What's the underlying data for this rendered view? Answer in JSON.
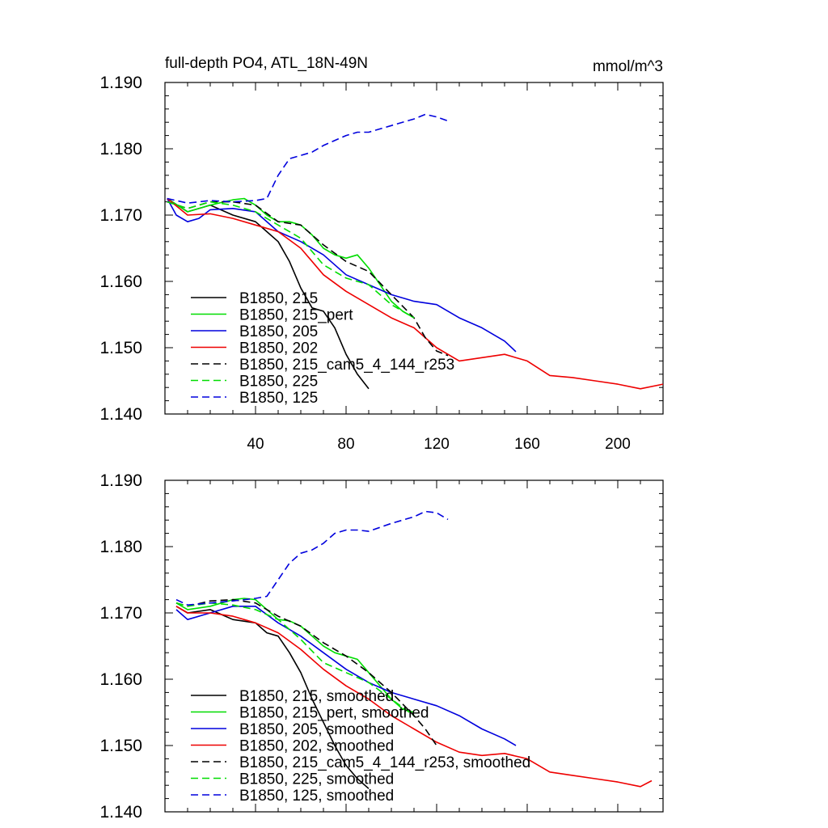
{
  "chart_data": [
    {
      "type": "line",
      "title": "full-depth PO4, ATL_18N-49N",
      "units": "mmol/m^3",
      "xlim": [
        0,
        220
      ],
      "ylim": [
        1.14,
        1.19
      ],
      "x_ticks": [
        "40",
        "80",
        "120",
        "160",
        "200"
      ],
      "y_ticks": [
        "1.190",
        "1.180",
        "1.170",
        "1.160",
        "1.150",
        "1.140"
      ],
      "legend_position": "bottom-left",
      "series": [
        {
          "name": "B1850, 215",
          "color": "#000000",
          "dashed": false,
          "x": [
            1,
            10,
            20,
            30,
            40,
            45,
            50,
            55,
            60,
            65,
            70,
            75,
            80,
            85,
            90
          ],
          "y": [
            1.1725,
            1.1705,
            1.1715,
            1.17,
            1.169,
            1.1675,
            1.166,
            1.163,
            1.159,
            1.156,
            1.1555,
            1.153,
            1.149,
            1.146,
            1.1438
          ]
        },
        {
          "name": "B1850, 215_pert",
          "color": "#00dd00",
          "dashed": false,
          "x": [
            1,
            10,
            20,
            30,
            35,
            40,
            45,
            50,
            55,
            60,
            65,
            70,
            75,
            80,
            85,
            90,
            95,
            100,
            105,
            110
          ],
          "y": [
            1.1725,
            1.1705,
            1.1715,
            1.1723,
            1.1725,
            1.1715,
            1.17,
            1.169,
            1.169,
            1.1685,
            1.167,
            1.165,
            1.164,
            1.1635,
            1.164,
            1.162,
            1.1595,
            1.157,
            1.1555,
            1.1545
          ]
        },
        {
          "name": "B1850, 205",
          "color": "#0000dd",
          "dashed": false,
          "x": [
            1,
            5,
            10,
            15,
            20,
            30,
            40,
            50,
            60,
            70,
            80,
            90,
            100,
            110,
            120,
            130,
            140,
            150,
            155
          ],
          "y": [
            1.1725,
            1.17,
            1.169,
            1.1695,
            1.1708,
            1.171,
            1.1705,
            1.1675,
            1.166,
            1.164,
            1.161,
            1.1595,
            1.158,
            1.157,
            1.1565,
            1.1545,
            1.153,
            1.151,
            1.1494
          ]
        },
        {
          "name": "B1850, 202",
          "color": "#ee0000",
          "dashed": false,
          "x": [
            1,
            10,
            20,
            30,
            40,
            50,
            60,
            70,
            80,
            90,
            100,
            110,
            120,
            130,
            140,
            150,
            160,
            170,
            180,
            190,
            200,
            210,
            220
          ],
          "y": [
            1.1725,
            1.17,
            1.1702,
            1.1695,
            1.1685,
            1.1675,
            1.165,
            1.161,
            1.1585,
            1.1565,
            1.1545,
            1.153,
            1.15,
            1.148,
            1.1485,
            1.149,
            1.148,
            1.1458,
            1.1455,
            1.145,
            1.1445,
            1.1438,
            1.1445
          ]
        },
        {
          "name": "B1850, 215_cam5_4_144_r253",
          "color": "#000000",
          "dashed": true,
          "x": [
            1,
            10,
            20,
            30,
            40,
            50,
            60,
            70,
            80,
            90,
            100,
            110,
            115,
            120,
            125
          ],
          "y": [
            1.172,
            1.171,
            1.172,
            1.172,
            1.1715,
            1.169,
            1.1685,
            1.1655,
            1.163,
            1.1615,
            1.158,
            1.1545,
            1.1515,
            1.1495,
            1.1488
          ]
        },
        {
          "name": "B1850, 225",
          "color": "#00dd00",
          "dashed": true,
          "x": [
            1,
            10,
            20,
            30,
            40,
            50,
            60,
            70,
            80,
            90,
            100,
            110
          ],
          "y": [
            1.172,
            1.171,
            1.172,
            1.1715,
            1.1705,
            1.1685,
            1.1665,
            1.1625,
            1.1605,
            1.1595,
            1.1565,
            1.1545
          ]
        },
        {
          "name": "B1850, 125",
          "color": "#0000dd",
          "dashed": true,
          "x": [
            1,
            10,
            20,
            30,
            40,
            45,
            50,
            55,
            60,
            65,
            70,
            80,
            85,
            90,
            100,
            110,
            115,
            120,
            125
          ],
          "y": [
            1.1725,
            1.1718,
            1.1722,
            1.172,
            1.1722,
            1.1725,
            1.176,
            1.1785,
            1.179,
            1.1795,
            1.1805,
            1.182,
            1.1825,
            1.1825,
            1.1835,
            1.1845,
            1.1852,
            1.1848,
            1.1842
          ]
        }
      ]
    },
    {
      "type": "line",
      "xlim": [
        0,
        220
      ],
      "ylim": [
        1.14,
        1.19
      ],
      "y_ticks": [
        "1.190",
        "1.180",
        "1.170",
        "1.160",
        "1.150",
        "1.140"
      ],
      "legend_position": "bottom-left",
      "series": [
        {
          "name": "B1850, 215, smoothed",
          "color": "#000000",
          "dashed": false,
          "x": [
            5,
            10,
            20,
            30,
            40,
            45,
            50,
            55,
            60,
            65,
            70,
            75,
            80,
            85,
            90
          ],
          "y": [
            1.171,
            1.17,
            1.1705,
            1.169,
            1.1685,
            1.167,
            1.1665,
            1.164,
            1.161,
            1.157,
            1.1535,
            1.15,
            1.147,
            1.145,
            1.1435
          ]
        },
        {
          "name": "B1850, 215_pert, smoothed",
          "color": "#00dd00",
          "dashed": false,
          "x": [
            5,
            10,
            20,
            30,
            35,
            40,
            45,
            50,
            55,
            60,
            65,
            70,
            75,
            80,
            85,
            90,
            95,
            100,
            105,
            110
          ],
          "y": [
            1.1715,
            1.1705,
            1.171,
            1.172,
            1.1722,
            1.172,
            1.1705,
            1.169,
            1.1688,
            1.168,
            1.1665,
            1.165,
            1.164,
            1.1635,
            1.163,
            1.161,
            1.159,
            1.157,
            1.1555,
            1.155
          ]
        },
        {
          "name": "B1850, 205, smoothed",
          "color": "#0000dd",
          "dashed": false,
          "x": [
            5,
            10,
            20,
            30,
            40,
            50,
            60,
            70,
            80,
            90,
            100,
            110,
            120,
            130,
            140,
            150,
            155
          ],
          "y": [
            1.1705,
            1.169,
            1.17,
            1.171,
            1.171,
            1.1685,
            1.1665,
            1.164,
            1.1615,
            1.1595,
            1.158,
            1.157,
            1.156,
            1.1545,
            1.1525,
            1.151,
            1.15
          ]
        },
        {
          "name": "B1850, 202, smoothed",
          "color": "#ee0000",
          "dashed": false,
          "x": [
            5,
            10,
            20,
            30,
            40,
            50,
            60,
            70,
            80,
            90,
            100,
            110,
            120,
            130,
            140,
            150,
            160,
            170,
            180,
            190,
            200,
            210,
            215
          ],
          "y": [
            1.171,
            1.17,
            1.17,
            1.1695,
            1.1685,
            1.167,
            1.1645,
            1.1615,
            1.159,
            1.157,
            1.1545,
            1.1525,
            1.1505,
            1.149,
            1.1485,
            1.1488,
            1.148,
            1.146,
            1.1455,
            1.145,
            1.1445,
            1.1438,
            1.1447
          ]
        },
        {
          "name": "B1850, 215_cam5_4_144_r253, smoothed",
          "color": "#000000",
          "dashed": true,
          "x": [
            5,
            10,
            20,
            30,
            40,
            50,
            60,
            70,
            80,
            90,
            100,
            110,
            115,
            120
          ],
          "y": [
            1.1715,
            1.171,
            1.1718,
            1.172,
            1.1715,
            1.1695,
            1.168,
            1.1655,
            1.1635,
            1.161,
            1.158,
            1.1545,
            1.1525,
            1.15
          ]
        },
        {
          "name": "B1850, 225, smoothed",
          "color": "#00dd00",
          "dashed": true,
          "x": [
            5,
            10,
            20,
            30,
            40,
            50,
            60,
            70,
            80,
            90,
            100,
            110
          ],
          "y": [
            1.1715,
            1.171,
            1.1715,
            1.1712,
            1.1705,
            1.169,
            1.166,
            1.1625,
            1.161,
            1.1595,
            1.157,
            1.1545
          ]
        },
        {
          "name": "B1850, 125, smoothed",
          "color": "#0000dd",
          "dashed": true,
          "x": [
            5,
            10,
            20,
            30,
            40,
            45,
            50,
            55,
            60,
            65,
            70,
            75,
            80,
            85,
            90,
            100,
            110,
            115,
            120,
            125
          ],
          "y": [
            1.172,
            1.1712,
            1.1715,
            1.1718,
            1.1722,
            1.1725,
            1.175,
            1.1775,
            1.179,
            1.1795,
            1.1805,
            1.182,
            1.1825,
            1.1825,
            1.1823,
            1.1835,
            1.1845,
            1.1853,
            1.1851,
            1.1841
          ]
        }
      ]
    }
  ]
}
